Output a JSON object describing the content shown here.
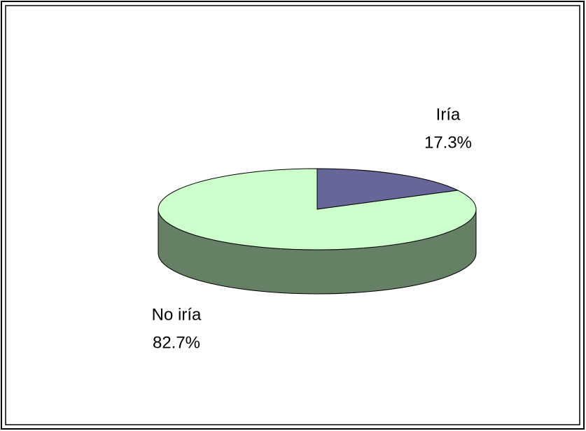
{
  "chart_data": {
    "type": "pie3d",
    "categories": [
      "Iría",
      "No iría"
    ],
    "values": [
      17.3,
      82.7
    ],
    "value_labels": [
      "17.3%",
      "82.7%"
    ],
    "colors": [
      "#666699",
      "#ccffcc"
    ]
  }
}
